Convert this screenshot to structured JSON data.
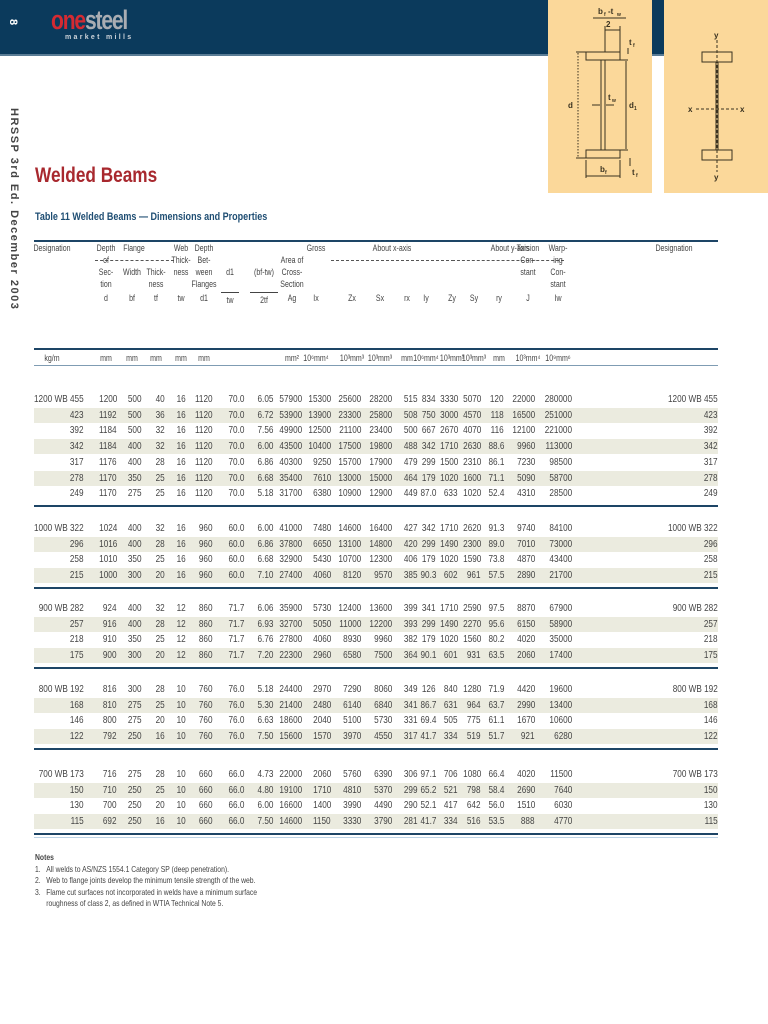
{
  "header": {
    "page_number": "8",
    "brand_one": "one",
    "brand_steel": "steel",
    "brand_sub": "market mills",
    "colors": {
      "band": "#0b3a5c",
      "brand_red": "#d42a32",
      "brand_grey": "#a9adb3",
      "diagram_bg": "#fbd89a"
    }
  },
  "side_label": "HRSSP 3rd Ed. December 2003",
  "diagrams": {
    "left": {
      "labels": {
        "top_fraction_num": "bf - tw",
        "top_fraction_den": "2",
        "tf": "tf",
        "tw": "tw",
        "d": "d",
        "d1": "d1",
        "bf": "bf",
        "tf_bottom": "tf"
      }
    },
    "right": {
      "labels": {
        "y_top": "y",
        "y_bottom": "y",
        "x_left": "x",
        "x_right": "x"
      }
    }
  },
  "page_title": "Welded Beams",
  "table_title": "Table 11 Welded Beams — Dimensions and Properties",
  "table": {
    "group_headers": {
      "flange": "Flange",
      "gross": "Gross",
      "about_x": "About x-axis",
      "about_y": "About y-axis"
    },
    "columns": [
      {
        "key": "designation",
        "lines": [
          "Designation"
        ],
        "symbol": "",
        "unit": "kg/m"
      },
      {
        "key": "d",
        "lines": [
          "Depth",
          "of",
          "Sec-",
          "tion"
        ],
        "symbol": "d",
        "unit": "mm"
      },
      {
        "key": "bf",
        "lines": [
          "Width"
        ],
        "symbol": "bf",
        "unit": "mm"
      },
      {
        "key": "tf",
        "lines": [
          "Thick-",
          "ness"
        ],
        "symbol": "tf",
        "unit": "mm"
      },
      {
        "key": "tw",
        "lines": [
          "Web",
          "Thick-",
          "ness"
        ],
        "symbol": "tw",
        "unit": "mm"
      },
      {
        "key": "d1",
        "lines": [
          "Depth",
          "Bet-",
          "ween",
          "Flanges"
        ],
        "symbol": "d1",
        "unit": "mm"
      },
      {
        "key": "d1_tw",
        "lines": [
          "d1"
        ],
        "symbol": "tw",
        "unit": ""
      },
      {
        "key": "bf_tw_2tf",
        "lines": [
          "(bf-tw)"
        ],
        "symbol": "2tf",
        "unit": ""
      },
      {
        "key": "ag",
        "lines": [
          "Area of",
          "Cross-",
          "Section"
        ],
        "symbol": "Ag",
        "unit": "mm²"
      },
      {
        "key": "ix",
        "lines": [],
        "symbol": "Ix",
        "unit": "10⁶mm⁴"
      },
      {
        "key": "zx",
        "lines": [],
        "symbol": "Zx",
        "unit": "10³mm³"
      },
      {
        "key": "sx",
        "lines": [],
        "symbol": "Sx",
        "unit": "10³mm³"
      },
      {
        "key": "rx",
        "lines": [],
        "symbol": "rx",
        "unit": "mm"
      },
      {
        "key": "iy",
        "lines": [],
        "symbol": "Iy",
        "unit": "10⁶mm⁴"
      },
      {
        "key": "zy",
        "lines": [],
        "symbol": "Zy",
        "unit": "10³mm³"
      },
      {
        "key": "sy",
        "lines": [],
        "symbol": "Sy",
        "unit": "10³mm³"
      },
      {
        "key": "ry",
        "lines": [],
        "symbol": "ry",
        "unit": "mm"
      },
      {
        "key": "j",
        "lines": [
          "Torsion",
          "Con-",
          "stant"
        ],
        "symbol": "J",
        "unit": "10³mm⁴"
      },
      {
        "key": "iw",
        "lines": [
          "Warp-",
          "ing",
          "Con-",
          "stant"
        ],
        "symbol": "Iw",
        "unit": "10⁹mm⁶"
      },
      {
        "key": "designation_r",
        "lines": [
          "Designation"
        ],
        "symbol": "",
        "unit": ""
      }
    ],
    "groups": [
      {
        "rows": [
          [
            "1200 WB 455",
            "1200",
            "500",
            "40",
            "16",
            "1120",
            "70.0",
            "6.05",
            "57900",
            "15300",
            "25600",
            "28200",
            "515",
            "834",
            "3330",
            "5070",
            "120",
            "22000",
            "280000",
            "1200 WB 455"
          ],
          [
            "423",
            "1192",
            "500",
            "36",
            "16",
            "1120",
            "70.0",
            "6.72",
            "53900",
            "13900",
            "23300",
            "25800",
            "508",
            "750",
            "3000",
            "4570",
            "118",
            "16500",
            "251000",
            "423"
          ],
          [
            "392",
            "1184",
            "500",
            "32",
            "16",
            "1120",
            "70.0",
            "7.56",
            "49900",
            "12500",
            "21100",
            "23400",
            "500",
            "667",
            "2670",
            "4070",
            "116",
            "12100",
            "221000",
            "392"
          ],
          [
            "342",
            "1184",
            "400",
            "32",
            "16",
            "1120",
            "70.0",
            "6.00",
            "43500",
            "10400",
            "17500",
            "19800",
            "488",
            "342",
            "1710",
            "2630",
            "88.6",
            "9960",
            "113000",
            "342"
          ],
          [
            "317",
            "1176",
            "400",
            "28",
            "16",
            "1120",
            "70.0",
            "6.86",
            "40300",
            "9250",
            "15700",
            "17900",
            "479",
            "299",
            "1500",
            "2310",
            "86.1",
            "7230",
            "98500",
            "317"
          ],
          [
            "278",
            "1170",
            "350",
            "25",
            "16",
            "1120",
            "70.0",
            "6.68",
            "35400",
            "7610",
            "13000",
            "15000",
            "464",
            "179",
            "1020",
            "1600",
            "71.1",
            "5090",
            "58700",
            "278"
          ],
          [
            "249",
            "1170",
            "275",
            "25",
            "16",
            "1120",
            "70.0",
            "5.18",
            "31700",
            "6380",
            "10900",
            "12900",
            "449",
            "87.0",
            "633",
            "1020",
            "52.4",
            "4310",
            "28500",
            "249"
          ]
        ]
      },
      {
        "rows": [
          [
            "1000 WB 322",
            "1024",
            "400",
            "32",
            "16",
            "960",
            "60.0",
            "6.00",
            "41000",
            "7480",
            "14600",
            "16400",
            "427",
            "342",
            "1710",
            "2620",
            "91.3",
            "9740",
            "84100",
            "1000 WB 322"
          ],
          [
            "296",
            "1016",
            "400",
            "28",
            "16",
            "960",
            "60.0",
            "6.86",
            "37800",
            "6650",
            "13100",
            "14800",
            "420",
            "299",
            "1490",
            "2300",
            "89.0",
            "7010",
            "73000",
            "296"
          ],
          [
            "258",
            "1010",
            "350",
            "25",
            "16",
            "960",
            "60.0",
            "6.68",
            "32900",
            "5430",
            "10700",
            "12300",
            "406",
            "179",
            "1020",
            "1590",
            "73.8",
            "4870",
            "43400",
            "258"
          ],
          [
            "215",
            "1000",
            "300",
            "20",
            "16",
            "960",
            "60.0",
            "7.10",
            "27400",
            "4060",
            "8120",
            "9570",
            "385",
            "90.3",
            "602",
            "961",
            "57.5",
            "2890",
            "21700",
            "215"
          ]
        ]
      },
      {
        "rows": [
          [
            "900 WB 282",
            "924",
            "400",
            "32",
            "12",
            "860",
            "71.7",
            "6.06",
            "35900",
            "5730",
            "12400",
            "13600",
            "399",
            "341",
            "1710",
            "2590",
            "97.5",
            "8870",
            "67900",
            "900 WB 282"
          ],
          [
            "257",
            "916",
            "400",
            "28",
            "12",
            "860",
            "71.7",
            "6.93",
            "32700",
            "5050",
            "11000",
            "12200",
            "393",
            "299",
            "1490",
            "2270",
            "95.6",
            "6150",
            "58900",
            "257"
          ],
          [
            "218",
            "910",
            "350",
            "25",
            "12",
            "860",
            "71.7",
            "6.76",
            "27800",
            "4060",
            "8930",
            "9960",
            "382",
            "179",
            "1020",
            "1560",
            "80.2",
            "4020",
            "35000",
            "218"
          ],
          [
            "175",
            "900",
            "300",
            "20",
            "12",
            "860",
            "71.7",
            "7.20",
            "22300",
            "2960",
            "6580",
            "7500",
            "364",
            "90.1",
            "601",
            "931",
            "63.5",
            "2060",
            "17400",
            "175"
          ]
        ]
      },
      {
        "rows": [
          [
            "800 WB 192",
            "816",
            "300",
            "28",
            "10",
            "760",
            "76.0",
            "5.18",
            "24400",
            "2970",
            "7290",
            "8060",
            "349",
            "126",
            "840",
            "1280",
            "71.9",
            "4420",
            "19600",
            "800 WB 192"
          ],
          [
            "168",
            "810",
            "275",
            "25",
            "10",
            "760",
            "76.0",
            "5.30",
            "21400",
            "2480",
            "6140",
            "6840",
            "341",
            "86.7",
            "631",
            "964",
            "63.7",
            "2990",
            "13400",
            "168"
          ],
          [
            "146",
            "800",
            "275",
            "20",
            "10",
            "760",
            "76.0",
            "6.63",
            "18600",
            "2040",
            "5100",
            "5730",
            "331",
            "69.4",
            "505",
            "775",
            "61.1",
            "1670",
            "10600",
            "146"
          ],
          [
            "122",
            "792",
            "250",
            "16",
            "10",
            "760",
            "76.0",
            "7.50",
            "15600",
            "1570",
            "3970",
            "4550",
            "317",
            "41.7",
            "334",
            "519",
            "51.7",
            "921",
            "6280",
            "122"
          ]
        ]
      },
      {
        "rows": [
          [
            "700 WB 173",
            "716",
            "275",
            "28",
            "10",
            "660",
            "66.0",
            "4.73",
            "22000",
            "2060",
            "5760",
            "6390",
            "306",
            "97.1",
            "706",
            "1080",
            "66.4",
            "4020",
            "11500",
            "700 WB 173"
          ],
          [
            "150",
            "710",
            "250",
            "25",
            "10",
            "660",
            "66.0",
            "4.80",
            "19100",
            "1710",
            "4810",
            "5370",
            "299",
            "65.2",
            "521",
            "798",
            "58.4",
            "2690",
            "7640",
            "150"
          ],
          [
            "130",
            "700",
            "250",
            "20",
            "10",
            "660",
            "66.0",
            "6.00",
            "16600",
            "1400",
            "3990",
            "4490",
            "290",
            "52.1",
            "417",
            "642",
            "56.0",
            "1510",
            "6030",
            "130"
          ],
          [
            "115",
            "692",
            "250",
            "16",
            "10",
            "660",
            "66.0",
            "7.50",
            "14600",
            "1150",
            "3330",
            "3790",
            "281",
            "41.7",
            "334",
            "516",
            "53.5",
            "888",
            "4770",
            "115"
          ]
        ]
      }
    ]
  },
  "notes": {
    "title": "Notes",
    "items": [
      {
        "num": "1.",
        "text": "All welds to AS/NZS 1554.1 Category SP (deep penetration)."
      },
      {
        "num": "2.",
        "text": "Web to flange joints develop the minimum tensile strength of the web."
      },
      {
        "num": "3.",
        "text": "Flame cut surfaces not incorporated in welds have a minimum surface"
      },
      {
        "num": "",
        "text": "roughness of class 2, as defined in WTIA Technical Note 5."
      }
    ]
  }
}
